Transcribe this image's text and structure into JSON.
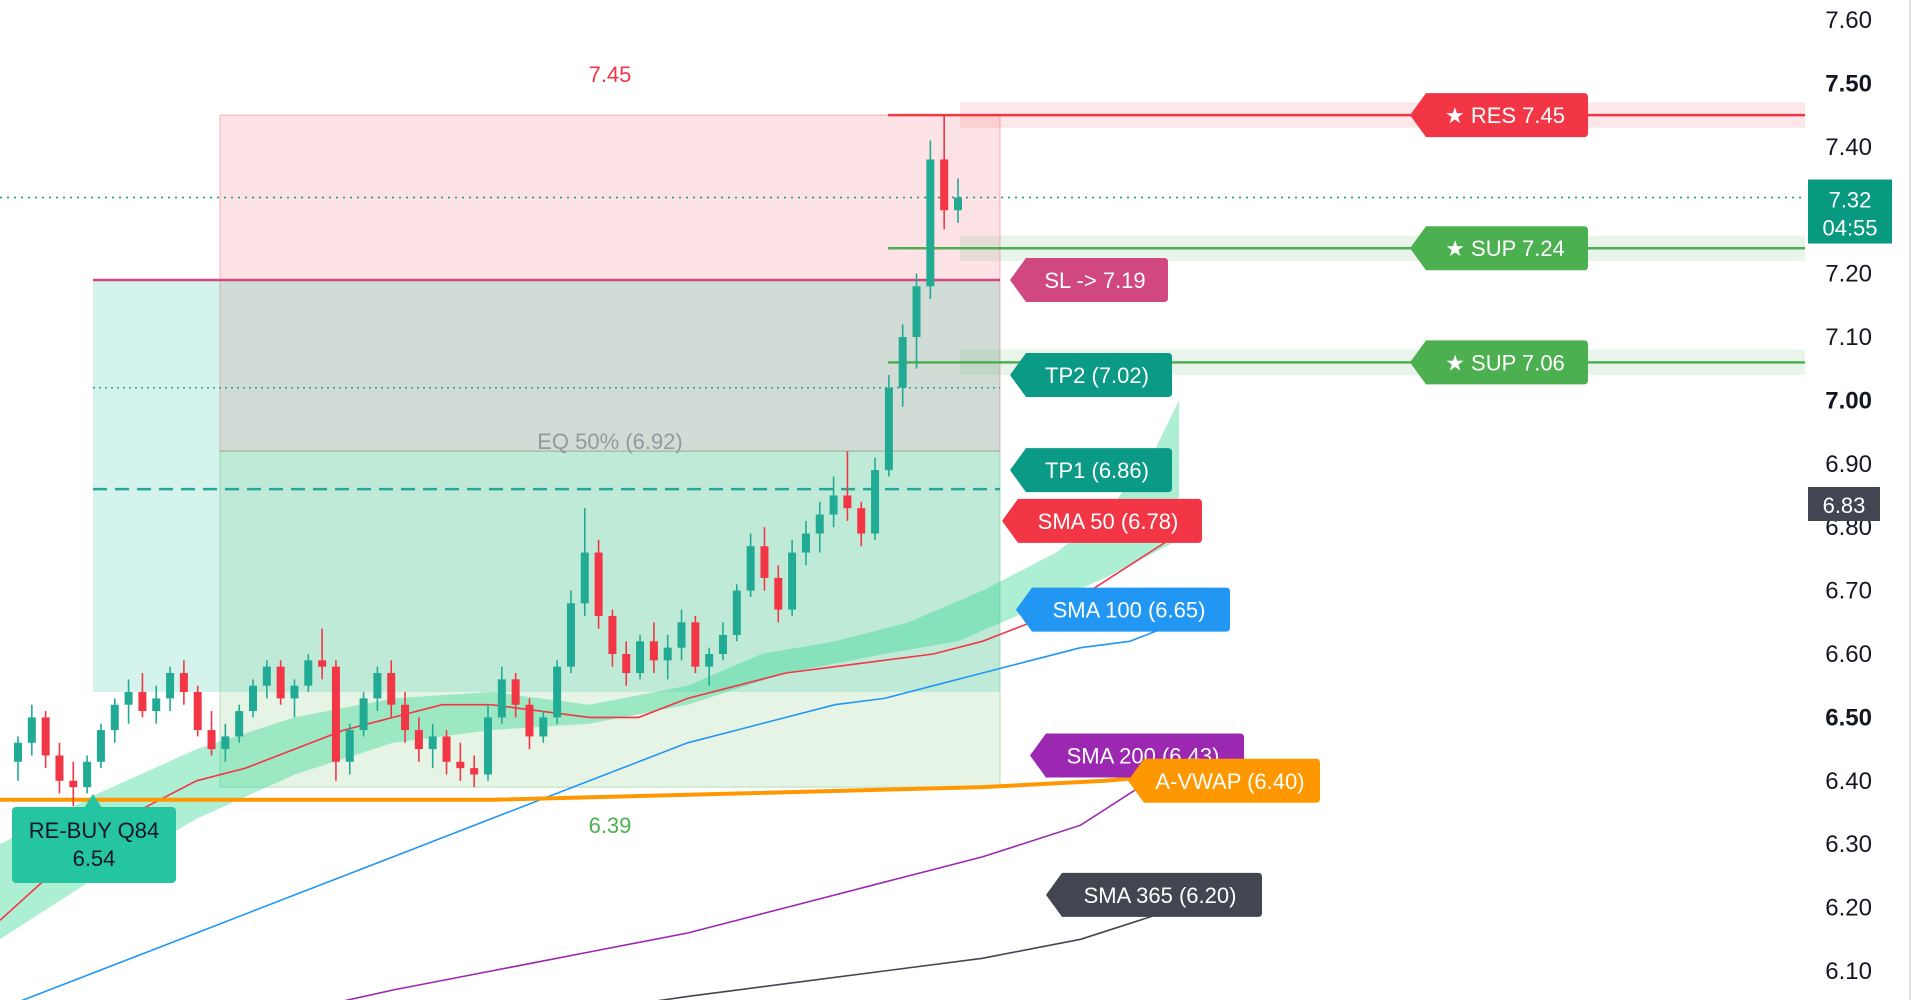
{
  "chart_data": {
    "type": "candlestick",
    "y_axis": {
      "range": [
        6.04,
        7.64
      ],
      "ticks": [
        "7.60",
        "7.50",
        "7.40",
        "7.20",
        "7.10",
        "7.00",
        "6.90",
        "6.80",
        "6.70",
        "6.60",
        "6.50",
        "6.40",
        "6.30",
        "6.20",
        "6.10"
      ],
      "tick_values": [
        7.6,
        7.5,
        7.4,
        7.2,
        7.1,
        7.0,
        6.9,
        6.8,
        6.7,
        6.6,
        6.5,
        6.4,
        6.3,
        6.2,
        6.1
      ],
      "bold_ticks": [
        "7.50",
        "7.00",
        "6.50"
      ]
    },
    "price_tags": [
      {
        "value": 7.32,
        "label": "7.32",
        "countdown": "04:55",
        "color": "#089981"
      },
      {
        "value": 6.83,
        "label": "6.83",
        "color": "#434651"
      }
    ],
    "current_price_value": 7.32,
    "range_high": {
      "value": 7.45,
      "label": "7.45",
      "color": "#f23645"
    },
    "range_low": {
      "value": 6.39,
      "label": "6.39",
      "color": "#4caf50"
    },
    "eq_line": {
      "value": 6.92,
      "label": "EQ 50% (6.92)",
      "color": "#9598a1"
    },
    "levels": [
      {
        "name": "RES",
        "label": "★ RES 7.45",
        "value": 7.45,
        "color": "#f23645"
      },
      {
        "name": "SUP 7.24",
        "label": "★ SUP 7.24",
        "value": 7.24,
        "color": "#4caf50"
      },
      {
        "name": "SUP 7.06",
        "label": "★ SUP 7.06",
        "value": 7.06,
        "color": "#4caf50"
      }
    ],
    "trade_lines": [
      {
        "name": "SL",
        "label": "SL -> 7.19",
        "value": 7.19,
        "color": "#d0487f"
      },
      {
        "name": "TP2",
        "label": "TP2 (7.02)",
        "value": 7.02,
        "color": "#0a9a85"
      },
      {
        "name": "TP1",
        "label": "TP1 (6.86)",
        "value": 6.86,
        "color": "#0a9a85"
      }
    ],
    "entry": {
      "label_line1": "RE-BUY Q84",
      "label_line2": "6.54",
      "value": 6.54,
      "color": "#26c5a2"
    },
    "moving_averages": [
      {
        "name": "SMA 50",
        "label": "SMA 50 (6.78)",
        "value": 6.78,
        "color": "#f23645",
        "points": [
          [
            0,
            6.18
          ],
          [
            40,
            6.25
          ],
          [
            80,
            6.32
          ],
          [
            120,
            6.36
          ],
          [
            160,
            6.4
          ],
          [
            200,
            6.42
          ],
          [
            240,
            6.45
          ],
          [
            280,
            6.48
          ],
          [
            320,
            6.5
          ],
          [
            360,
            6.52
          ],
          [
            400,
            6.52
          ],
          [
            440,
            6.51
          ],
          [
            480,
            6.5
          ],
          [
            520,
            6.5
          ],
          [
            560,
            6.53
          ],
          [
            600,
            6.55
          ],
          [
            640,
            6.57
          ],
          [
            680,
            6.58
          ],
          [
            720,
            6.59
          ],
          [
            760,
            6.6
          ],
          [
            800,
            6.62
          ],
          [
            840,
            6.65
          ],
          [
            880,
            6.69
          ],
          [
            920,
            6.74
          ],
          [
            960,
            6.79
          ]
        ]
      },
      {
        "name": "SMA 100",
        "label": "SMA 100 (6.65)",
        "value": 6.65,
        "color": "#2196f3",
        "points": [
          [
            0,
            6.04
          ],
          [
            80,
            6.1
          ],
          [
            160,
            6.16
          ],
          [
            240,
            6.22
          ],
          [
            320,
            6.28
          ],
          [
            400,
            6.34
          ],
          [
            440,
            6.37
          ],
          [
            480,
            6.4
          ],
          [
            520,
            6.43
          ],
          [
            560,
            6.46
          ],
          [
            600,
            6.48
          ],
          [
            640,
            6.5
          ],
          [
            680,
            6.52
          ],
          [
            720,
            6.53
          ],
          [
            760,
            6.55
          ],
          [
            800,
            6.57
          ],
          [
            840,
            6.59
          ],
          [
            880,
            6.61
          ],
          [
            920,
            6.62
          ],
          [
            960,
            6.65
          ]
        ]
      },
      {
        "name": "SMA 200",
        "label": "SMA 200 (6.43)",
        "value": 6.43,
        "color": "#9c27b0",
        "points": [
          [
            250,
            6.04
          ],
          [
            320,
            6.07
          ],
          [
            400,
            6.1
          ],
          [
            480,
            6.13
          ],
          [
            560,
            6.16
          ],
          [
            640,
            6.2
          ],
          [
            720,
            6.24
          ],
          [
            800,
            6.28
          ],
          [
            880,
            6.33
          ],
          [
            960,
            6.43
          ]
        ]
      },
      {
        "name": "SMA 365",
        "label": "SMA 365 (6.20)",
        "value": 6.2,
        "color": "#434651",
        "points": [
          [
            490,
            6.04
          ],
          [
            560,
            6.06
          ],
          [
            640,
            6.08
          ],
          [
            720,
            6.1
          ],
          [
            800,
            6.12
          ],
          [
            880,
            6.15
          ],
          [
            960,
            6.2
          ]
        ]
      },
      {
        "name": "A-VWAP",
        "label": "A-VWAP (6.40)",
        "value": 6.4,
        "color": "#ff9800",
        "points": [
          [
            0,
            6.37
          ],
          [
            200,
            6.37
          ],
          [
            400,
            6.37
          ],
          [
            600,
            6.38
          ],
          [
            800,
            6.39
          ],
          [
            900,
            6.4
          ],
          [
            960,
            6.41
          ]
        ]
      }
    ],
    "candles": [
      [
        6.43,
        6.47,
        6.4,
        6.46
      ],
      [
        6.46,
        6.52,
        6.44,
        6.5
      ],
      [
        6.5,
        6.51,
        6.42,
        6.44
      ],
      [
        6.44,
        6.46,
        6.38,
        6.4
      ],
      [
        6.4,
        6.43,
        6.36,
        6.39
      ],
      [
        6.39,
        6.44,
        6.38,
        6.43
      ],
      [
        6.43,
        6.49,
        6.42,
        6.48
      ],
      [
        6.48,
        6.53,
        6.46,
        6.52
      ],
      [
        6.52,
        6.56,
        6.49,
        6.54
      ],
      [
        6.54,
        6.57,
        6.5,
        6.51
      ],
      [
        6.51,
        6.55,
        6.49,
        6.53
      ],
      [
        6.53,
        6.58,
        6.51,
        6.57
      ],
      [
        6.57,
        6.59,
        6.52,
        6.54
      ],
      [
        6.54,
        6.55,
        6.47,
        6.48
      ],
      [
        6.48,
        6.51,
        6.44,
        6.45
      ],
      [
        6.45,
        6.49,
        6.43,
        6.47
      ],
      [
        6.47,
        6.52,
        6.46,
        6.51
      ],
      [
        6.51,
        6.56,
        6.5,
        6.55
      ],
      [
        6.55,
        6.59,
        6.53,
        6.58
      ],
      [
        6.58,
        6.59,
        6.52,
        6.53
      ],
      [
        6.53,
        6.56,
        6.5,
        6.55
      ],
      [
        6.55,
        6.6,
        6.54,
        6.59
      ],
      [
        6.59,
        6.64,
        6.56,
        6.58
      ],
      [
        6.58,
        6.59,
        6.4,
        6.43
      ],
      [
        6.43,
        6.49,
        6.41,
        6.48
      ],
      [
        6.48,
        6.54,
        6.47,
        6.53
      ],
      [
        6.53,
        6.58,
        6.51,
        6.57
      ],
      [
        6.57,
        6.59,
        6.5,
        6.52
      ],
      [
        6.52,
        6.54,
        6.46,
        6.48
      ],
      [
        6.48,
        6.5,
        6.43,
        6.45
      ],
      [
        6.45,
        6.49,
        6.42,
        6.47
      ],
      [
        6.47,
        6.48,
        6.41,
        6.43
      ],
      [
        6.43,
        6.46,
        6.4,
        6.42
      ],
      [
        6.42,
        6.44,
        6.39,
        6.41
      ],
      [
        6.41,
        6.52,
        6.4,
        6.5
      ],
      [
        6.5,
        6.58,
        6.49,
        6.56
      ],
      [
        6.56,
        6.57,
        6.5,
        6.52
      ],
      [
        6.52,
        6.53,
        6.45,
        6.47
      ],
      [
        6.47,
        6.51,
        6.46,
        6.5
      ],
      [
        6.5,
        6.59,
        6.49,
        6.58
      ],
      [
        6.58,
        6.7,
        6.57,
        6.68
      ],
      [
        6.68,
        6.83,
        6.66,
        6.76
      ],
      [
        6.76,
        6.78,
        6.64,
        6.66
      ],
      [
        6.66,
        6.67,
        6.58,
        6.6
      ],
      [
        6.6,
        6.62,
        6.55,
        6.57
      ],
      [
        6.57,
        6.63,
        6.56,
        6.62
      ],
      [
        6.62,
        6.65,
        6.57,
        6.59
      ],
      [
        6.59,
        6.63,
        6.56,
        6.61
      ],
      [
        6.61,
        6.67,
        6.59,
        6.65
      ],
      [
        6.65,
        6.66,
        6.57,
        6.58
      ],
      [
        6.58,
        6.61,
        6.55,
        6.6
      ],
      [
        6.6,
        6.65,
        6.59,
        6.63
      ],
      [
        6.63,
        6.71,
        6.62,
        6.7
      ],
      [
        6.7,
        6.79,
        6.69,
        6.77
      ],
      [
        6.77,
        6.8,
        6.7,
        6.72
      ],
      [
        6.72,
        6.74,
        6.65,
        6.67
      ],
      [
        6.67,
        6.78,
        6.66,
        6.76
      ],
      [
        6.76,
        6.81,
        6.74,
        6.79
      ],
      [
        6.79,
        6.84,
        6.76,
        6.82
      ],
      [
        6.82,
        6.88,
        6.8,
        6.85
      ],
      [
        6.85,
        6.92,
        6.81,
        6.83
      ],
      [
        6.83,
        6.84,
        6.77,
        6.79
      ],
      [
        6.79,
        6.91,
        6.78,
        6.89
      ],
      [
        6.89,
        7.04,
        6.88,
        7.02
      ],
      [
        7.02,
        7.12,
        6.99,
        7.1
      ],
      [
        7.1,
        7.2,
        7.05,
        7.18
      ],
      [
        7.18,
        7.41,
        7.16,
        7.38
      ],
      [
        7.38,
        7.45,
        7.27,
        7.3
      ],
      [
        7.3,
        7.35,
        7.28,
        7.32
      ]
    ]
  }
}
